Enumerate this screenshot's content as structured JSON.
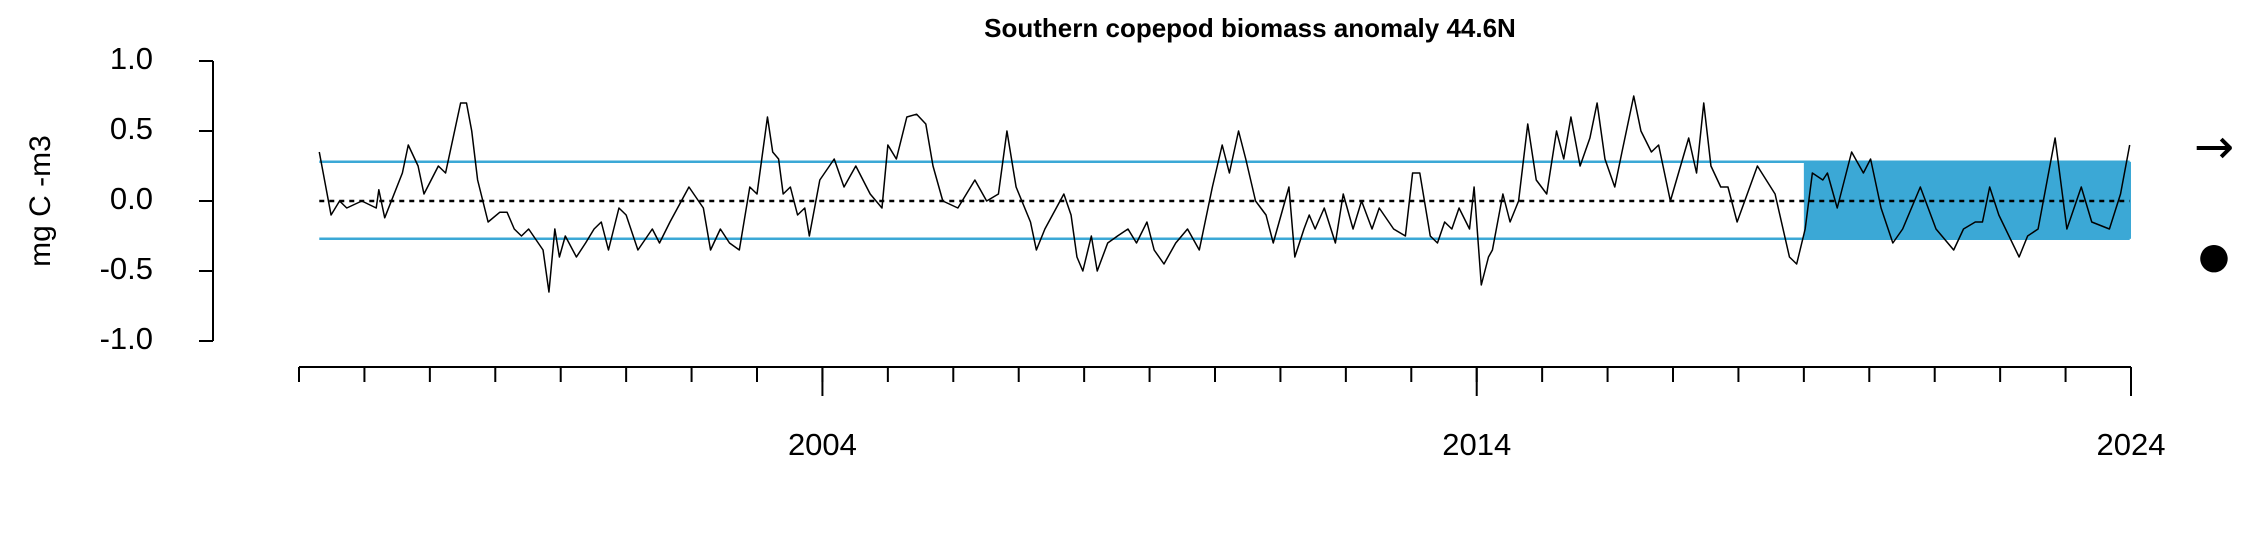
{
  "chart_data": {
    "type": "line",
    "title": "Southern copepod biomass anomaly 44.6N",
    "ylabel": "mg C -m3",
    "x": [
      1996.31,
      1996.49,
      1996.62,
      1996.73,
      1996.96,
      1997.18,
      1997.22,
      1997.31,
      1997.58,
      1997.67,
      1997.82,
      1997.91,
      1998.13,
      1998.24,
      1998.47,
      1998.56,
      1998.64,
      1998.73,
      1998.89,
      1999.07,
      1999.18,
      1999.29,
      1999.4,
      1999.51,
      1999.73,
      1999.82,
      1999.91,
      1999.98,
      2000.07,
      2000.24,
      2000.38,
      2000.51,
      2000.62,
      2000.73,
      2000.89,
      2001.0,
      2001.18,
      2001.4,
      2001.51,
      2001.67,
      2001.96,
      2002.18,
      2002.29,
      2002.44,
      2002.58,
      2002.73,
      2002.89,
      2003.0,
      2003.16,
      2003.24,
      2003.33,
      2003.4,
      2003.51,
      2003.62,
      2003.73,
      2003.8,
      2003.96,
      2004.18,
      2004.33,
      2004.51,
      2004.73,
      2004.91,
      2005.0,
      2005.13,
      2005.29,
      2005.44,
      2005.58,
      2005.69,
      2005.84,
      2006.07,
      2006.33,
      2006.51,
      2006.69,
      2006.82,
      2006.96,
      2007.18,
      2007.27,
      2007.4,
      2007.69,
      2007.8,
      2007.89,
      2007.98,
      2008.11,
      2008.2,
      2008.36,
      2008.51,
      2008.67,
      2008.8,
      2008.96,
      2009.07,
      2009.22,
      2009.4,
      2009.58,
      2009.76,
      2009.96,
      2010.11,
      2010.22,
      2010.36,
      2010.47,
      2010.62,
      2010.78,
      2010.89,
      2011.04,
      2011.13,
      2011.22,
      2011.36,
      2011.44,
      2011.53,
      2011.67,
      2011.84,
      2011.96,
      2012.11,
      2012.24,
      2012.4,
      2012.51,
      2012.73,
      2012.91,
      2013.02,
      2013.13,
      2013.29,
      2013.4,
      2013.51,
      2013.62,
      2013.73,
      2013.89,
      2013.96,
      2014.07,
      2014.18,
      2014.24,
      2014.4,
      2014.51,
      2014.64,
      2014.78,
      2014.91,
      2015.07,
      2015.22,
      2015.33,
      2015.44,
      2015.58,
      2015.73,
      2015.84,
      2015.96,
      2016.11,
      2016.22,
      2016.4,
      2016.51,
      2016.67,
      2016.78,
      2016.96,
      2017.24,
      2017.36,
      2017.47,
      2017.58,
      2017.73,
      2017.84,
      2017.98,
      2018.29,
      2018.56,
      2018.78,
      2018.89,
      2019.02,
      2019.13,
      2019.29,
      2019.36,
      2019.51,
      2019.73,
      2019.91,
      2020.02,
      2020.18,
      2020.36,
      2020.51,
      2020.78,
      2021.02,
      2021.29,
      2021.44,
      2021.62,
      2021.73,
      2021.84,
      2021.98,
      2022.29,
      2022.42,
      2022.58,
      2022.84,
      2023.02,
      2023.24,
      2023.4,
      2023.67,
      2023.84,
      2023.98
    ],
    "values": [
      0.35,
      -0.1,
      0,
      -0.05,
      0,
      -0.05,
      0.08,
      -0.12,
      0.2,
      0.4,
      0.25,
      0.05,
      0.25,
      0.2,
      0.7,
      0.7,
      0.5,
      0.15,
      -0.15,
      -0.08,
      -0.08,
      -0.2,
      -0.25,
      -0.2,
      -0.35,
      -0.65,
      -0.2,
      -0.4,
      -0.25,
      -0.4,
      -0.3,
      -0.2,
      -0.15,
      -0.35,
      -0.05,
      -0.1,
      -0.35,
      -0.2,
      -0.3,
      -0.15,
      0.1,
      -0.05,
      -0.35,
      -0.2,
      -0.3,
      -0.35,
      0.1,
      0.05,
      0.6,
      0.35,
      0.3,
      0.05,
      0.1,
      -0.1,
      -0.05,
      -0.25,
      0.15,
      0.3,
      0.1,
      0.25,
      0.05,
      -0.05,
      0.4,
      0.3,
      0.6,
      0.62,
      0.55,
      0.25,
      0,
      -0.05,
      0.15,
      0,
      0.05,
      0.5,
      0.1,
      -0.15,
      -0.35,
      -0.2,
      0.05,
      -0.1,
      -0.4,
      -0.5,
      -0.25,
      -0.5,
      -0.3,
      -0.25,
      -0.2,
      -0.3,
      -0.15,
      -0.35,
      -0.45,
      -0.3,
      -0.2,
      -0.35,
      0.1,
      0.4,
      0.2,
      0.5,
      0.3,
      0,
      -0.1,
      -0.3,
      -0.05,
      0.1,
      -0.4,
      -0.2,
      -0.1,
      -0.2,
      -0.05,
      -0.3,
      0.05,
      -0.2,
      0,
      -0.2,
      -0.05,
      -0.2,
      -0.25,
      0.2,
      0.2,
      -0.25,
      -0.3,
      -0.15,
      -0.2,
      -0.05,
      -0.2,
      0.1,
      -0.6,
      -0.4,
      -0.35,
      0.05,
      -0.15,
      0,
      0.55,
      0.15,
      0.05,
      0.5,
      0.3,
      0.6,
      0.25,
      0.45,
      0.7,
      0.3,
      0.1,
      0.35,
      0.75,
      0.5,
      0.35,
      0.4,
      0,
      0.45,
      0.2,
      0.7,
      0.25,
      0.1,
      0.1,
      -0.15,
      0.25,
      0.05,
      -0.4,
      -0.45,
      -0.2,
      0.2,
      0.15,
      0.2,
      -0.05,
      0.35,
      0.2,
      0.3,
      -0.05,
      -0.3,
      -0.2,
      0.1,
      -0.2,
      -0.35,
      -0.2,
      -0.15,
      -0.15,
      0.1,
      -0.1,
      -0.4,
      -0.25,
      -0.2,
      0.45,
      -0.2,
      0.1,
      -0.15,
      -0.2,
      0.05,
      0.4
    ],
    "color": "#000000",
    "xlim": [
      1996,
      2024
    ],
    "xticks": [
      2004,
      2014,
      2024
    ],
    "xminor_ticks": [
      1996,
      1997,
      1998,
      1999,
      2000,
      2001,
      2002,
      2003,
      2004,
      2005,
      2006,
      2007,
      2008,
      2009,
      2010,
      2011,
      2012,
      2013,
      2014,
      2015,
      2016,
      2017,
      2018,
      2019,
      2020,
      2021,
      2022,
      2023,
      2024
    ],
    "ylim": [
      -1,
      1
    ],
    "yticks": [
      {
        "value": -1,
        "label": "-1.0"
      },
      -0.5,
      {
        "value": 0,
        "label": "0.0"
      },
      0.5,
      {
        "value": 1,
        "label": "1.0"
      }
    ],
    "mean": 0,
    "sd_upper": 0.28,
    "sd_lower": -0.27,
    "band_color": "#3ba8d6",
    "recent_window": [
      2019,
      2024
    ],
    "symbols": [
      "→",
      "●"
    ]
  }
}
